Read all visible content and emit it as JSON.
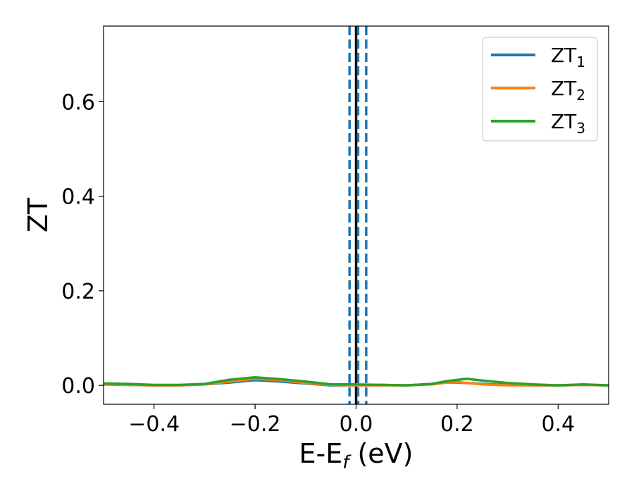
{
  "chart_data": {
    "type": "line",
    "xlabel": "E-E",
    "xlabel_sub": "f",
    "xlabel_unit": " (eV)",
    "ylabel": "ZT",
    "xlim": [
      -0.5,
      0.5
    ],
    "ylim": [
      -0.04,
      0.76
    ],
    "x_ticks": [
      -0.4,
      -0.2,
      0.0,
      0.2,
      0.4
    ],
    "x_tick_labels": [
      "−0.4",
      "−0.2",
      "0.0",
      "0.2",
      "0.4"
    ],
    "y_ticks": [
      0.0,
      0.2,
      0.4,
      0.6
    ],
    "y_tick_labels": [
      "0.0",
      "0.2",
      "0.4",
      "0.6"
    ],
    "grid": false,
    "legend_position": "top-right",
    "vlines": [
      {
        "x": -0.013,
        "style": "dashed",
        "color": "#1f77b4"
      },
      {
        "x": 0.0,
        "style": "solid",
        "color": "#000000"
      },
      {
        "x": 0.004,
        "style": "dashed",
        "color": "#1f77b4"
      },
      {
        "x": 0.02,
        "style": "dashed",
        "color": "#1f77b4"
      }
    ],
    "series": [
      {
        "name": "ZT",
        "name_sub": "1",
        "color": "#1f77b4",
        "x": [
          -0.5,
          -0.45,
          -0.4,
          -0.35,
          -0.3,
          -0.25,
          -0.2,
          -0.15,
          -0.1,
          -0.05,
          0.0,
          0.05,
          0.1,
          0.15,
          0.18,
          0.2,
          0.25,
          0.3,
          0.35,
          0.4,
          0.45,
          0.5
        ],
        "y": [
          0.002,
          0.001,
          0.0,
          0.0,
          0.002,
          0.006,
          0.011,
          0.008,
          0.004,
          0.0,
          0.0,
          0.001,
          0.0,
          0.003,
          0.006,
          0.006,
          0.003,
          0.001,
          0.0,
          0.0,
          0.001,
          0.0
        ]
      },
      {
        "name": "ZT",
        "name_sub": "2",
        "color": "#ff7f0e",
        "x": [
          -0.5,
          -0.45,
          -0.4,
          -0.35,
          -0.3,
          -0.25,
          -0.2,
          -0.15,
          -0.1,
          -0.05,
          0.0,
          0.05,
          0.1,
          0.15,
          0.18,
          0.2,
          0.25,
          0.3,
          0.35,
          0.4,
          0.45,
          0.5
        ],
        "y": [
          0.003,
          0.001,
          0.0,
          0.0,
          0.002,
          0.008,
          0.014,
          0.011,
          0.005,
          0.001,
          0.0,
          0.0,
          0.0,
          0.002,
          0.006,
          0.007,
          0.002,
          0.0,
          0.0,
          0.0,
          0.001,
          0.0
        ]
      },
      {
        "name": "ZT",
        "name_sub": "3",
        "color": "#2ca02c",
        "x": [
          -0.5,
          -0.45,
          -0.4,
          -0.35,
          -0.3,
          -0.25,
          -0.2,
          -0.15,
          -0.1,
          -0.05,
          0.0,
          0.05,
          0.1,
          0.15,
          0.18,
          0.22,
          0.25,
          0.3,
          0.35,
          0.4,
          0.45,
          0.5
        ],
        "y": [
          0.004,
          0.003,
          0.001,
          0.001,
          0.003,
          0.012,
          0.017,
          0.013,
          0.008,
          0.002,
          0.002,
          0.001,
          0.0,
          0.003,
          0.009,
          0.014,
          0.01,
          0.005,
          0.002,
          0.0,
          0.002,
          0.0
        ]
      }
    ]
  }
}
